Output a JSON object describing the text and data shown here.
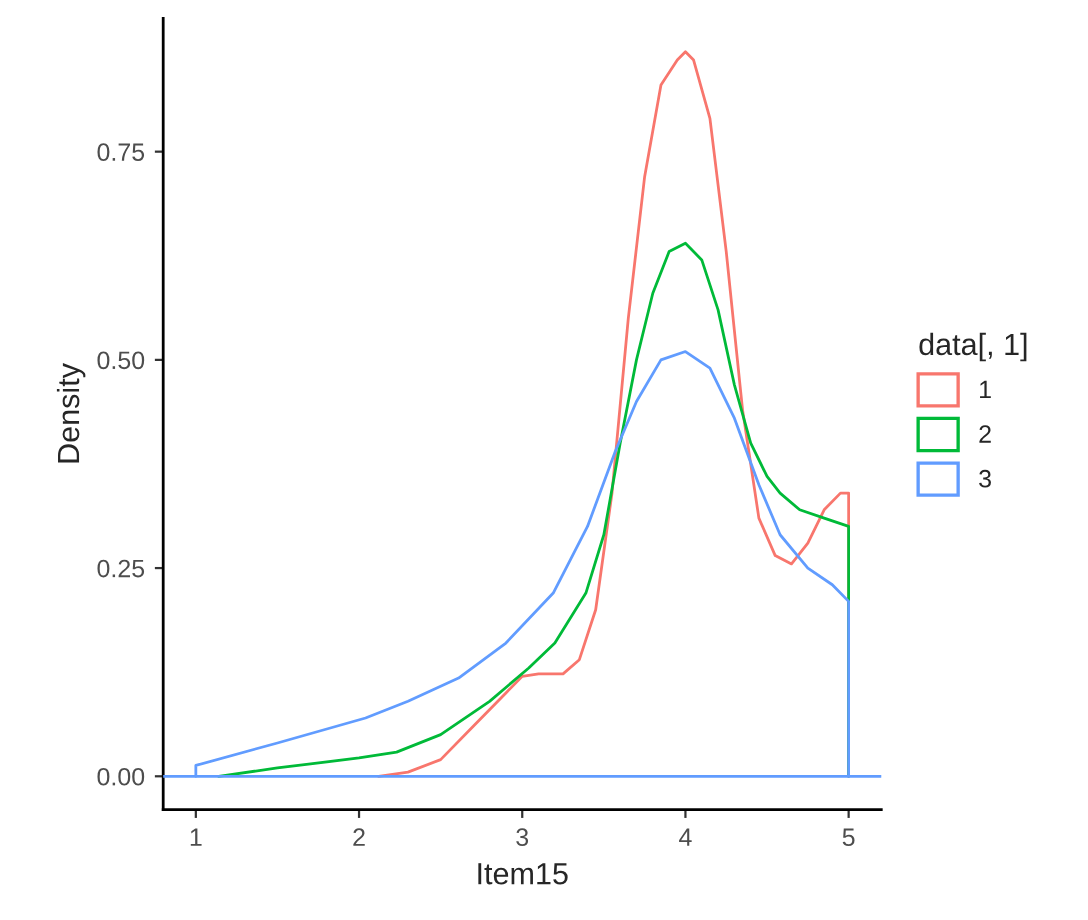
{
  "chart_data": {
    "type": "line",
    "xlabel": "Item15",
    "ylabel": "Density",
    "legend_title": "data[, 1]",
    "legend": "right",
    "grid": false,
    "xlim": [
      0.8,
      5.2
    ],
    "xticks": [
      1,
      2,
      3,
      4,
      5
    ],
    "ylim": [
      -0.04,
      0.91
    ],
    "yticks": [
      {
        "value": 0,
        "label": "0.00"
      },
      0.25,
      {
        "value": 0.5,
        "label": "0.50"
      },
      0.75
    ],
    "series": [
      {
        "name": "1",
        "color": "#f8766d",
        "x": [
          2.12,
          2.3,
          2.5,
          2.7,
          2.9,
          3.0,
          3.1,
          3.25,
          3.35,
          3.45,
          3.55,
          3.65,
          3.75,
          3.85,
          3.95,
          4.0,
          4.05,
          4.15,
          4.25,
          4.35,
          4.45,
          4.55,
          4.65,
          4.75,
          4.85,
          4.95,
          5.0,
          5.0
        ],
        "values": [
          0,
          0.005,
          0.02,
          0.06,
          0.1,
          0.12,
          0.123,
          0.123,
          0.14,
          0.2,
          0.34,
          0.55,
          0.72,
          0.83,
          0.86,
          0.87,
          0.86,
          0.79,
          0.63,
          0.44,
          0.31,
          0.265,
          0.255,
          0.28,
          0.32,
          0.34,
          0.34,
          0
        ]
      },
      {
        "name": "2",
        "color": "#00ba38",
        "x": [
          1.14,
          1.5,
          2.0,
          2.23,
          2.5,
          2.8,
          3.04,
          3.2,
          3.39,
          3.5,
          3.6,
          3.7,
          3.8,
          3.9,
          4.0,
          4.1,
          4.2,
          4.3,
          4.4,
          4.5,
          4.58,
          4.7,
          4.85,
          5.0,
          5.0
        ],
        "values": [
          0,
          0.01,
          0.022,
          0.029,
          0.05,
          0.09,
          0.13,
          0.16,
          0.22,
          0.29,
          0.4,
          0.5,
          0.58,
          0.63,
          0.64,
          0.62,
          0.56,
          0.47,
          0.4,
          0.36,
          0.34,
          0.32,
          0.31,
          0.3,
          0
        ]
      },
      {
        "name": "3",
        "color": "#619cff",
        "x": [
          1.0,
          1.0,
          1.5,
          2.04,
          2.3,
          2.61,
          2.9,
          3.19,
          3.4,
          3.57,
          3.7,
          3.85,
          4.0,
          4.15,
          4.3,
          4.45,
          4.58,
          4.75,
          4.9,
          5.0,
          5.0
        ],
        "values": [
          0,
          0.013,
          0.04,
          0.07,
          0.09,
          0.118,
          0.16,
          0.22,
          0.3,
          0.39,
          0.45,
          0.5,
          0.51,
          0.49,
          0.43,
          0.35,
          0.29,
          0.25,
          0.23,
          0.21,
          0
        ]
      }
    ],
    "ref_lines": [
      {
        "axis": "y",
        "value": 0,
        "color": "#619cff"
      }
    ]
  }
}
